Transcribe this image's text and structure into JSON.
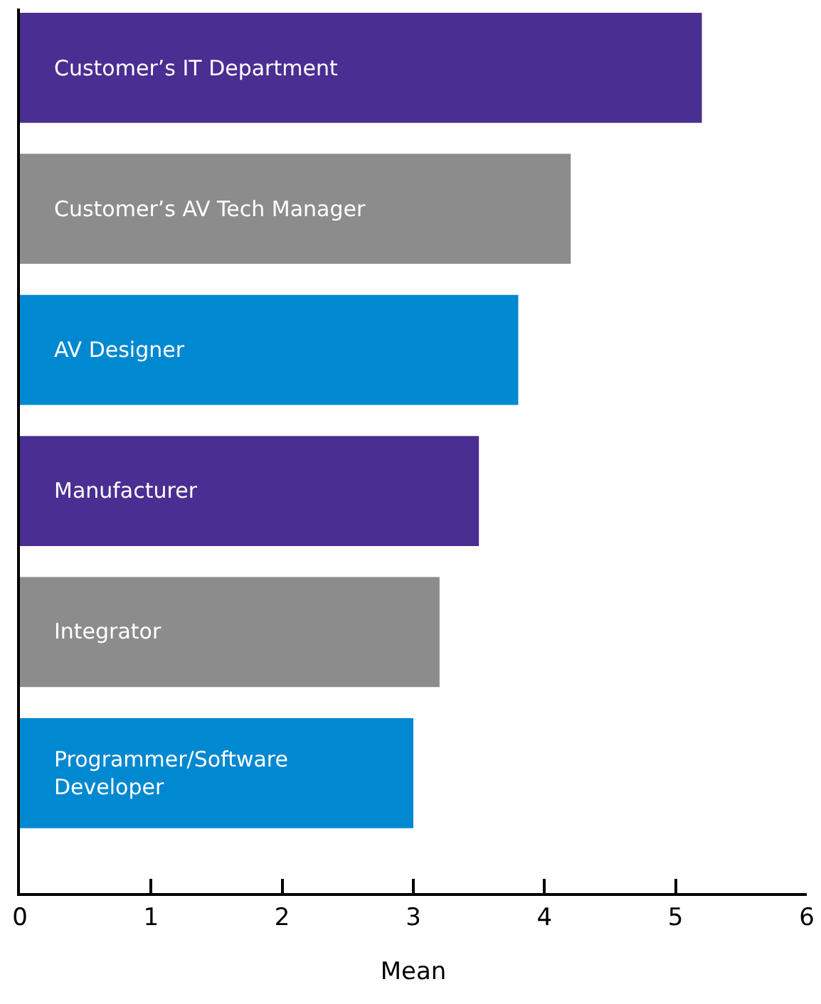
{
  "chart_data": {
    "type": "bar",
    "orientation": "horizontal",
    "xlabel": "Mean",
    "categories": [
      "Customer’s IT Department",
      "Customer’s AV Tech Manager",
      "AV Designer",
      "Manufacturer",
      "Integrator",
      "Programmer/Software\nDeveloper"
    ],
    "values": [
      5.2,
      4.2,
      3.8,
      3.5,
      3.2,
      3.0
    ],
    "colors": [
      "#4a2e91",
      "#8c8c8c",
      "#0088d0",
      "#4a2e91",
      "#8c8c8c",
      "#0088d0"
    ],
    "xlim": [
      0,
      6
    ],
    "xticks": [
      0,
      1,
      2,
      3,
      4,
      5,
      6
    ],
    "tick_labels": "x"
  }
}
